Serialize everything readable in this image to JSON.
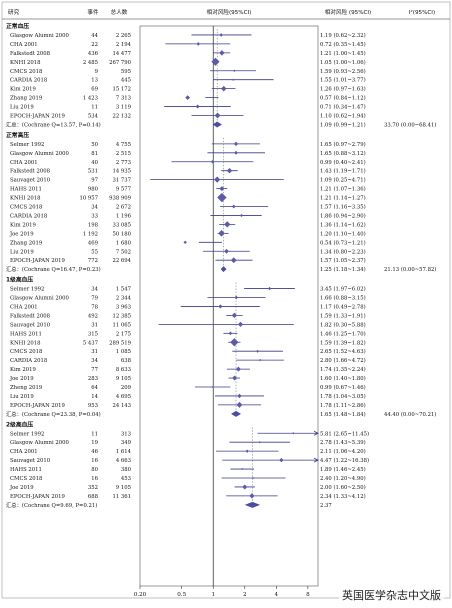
{
  "headers": {
    "study": "研究",
    "events": "事件",
    "total": "总人数",
    "plot": "相对风险(95%CI)",
    "rr": "相对风险 (95%CI)",
    "p": "I²(95%CI)"
  },
  "watermark": "英国医学杂志中文版",
  "chart_data": {
    "type": "forest",
    "x_ticks": [
      "0.20",
      "0.5",
      "1",
      "2",
      "4",
      "8"
    ],
    "x_tick_values": [
      0.2,
      0.5,
      1,
      2,
      4,
      8
    ],
    "x_scale": "log",
    "xlim": [
      0.2,
      10
    ],
    "colors": {
      "marker": "#5b5ba8",
      "line": "#3a3a8c",
      "summary": "#4b4ba0"
    },
    "groups": [
      {
        "label": "正常血压",
        "pooled_rr": 1.09,
        "studies": [
          {
            "name": "Glasgow Alumni 2000",
            "events": "44",
            "total": "2 265",
            "rr": 1.19,
            "lo": 0.62,
            "hi": 2.32,
            "text": "1.19 (0.62~2.32)"
          },
          {
            "name": "CHA 2001",
            "events": "22",
            "total": "2 194",
            "rr": 0.72,
            "lo": 0.35,
            "hi": 1.45,
            "text": "0.72 (0.35~1.45)"
          },
          {
            "name": "Falkstedt 2008",
            "events": "436",
            "total": "14 477",
            "rr": 1.21,
            "lo": 1.0,
            "hi": 1.45,
            "text": "1.21 (1.00~1.45)"
          },
          {
            "name": "KNHI 2018",
            "events": "2 485",
            "total": "267 790",
            "rr": 1.05,
            "lo": 1.0,
            "hi": 1.06,
            "text": "1.05 (1.00~1.06)"
          },
          {
            "name": "CMCS 2018",
            "events": "9",
            "total": "595",
            "rr": 1.59,
            "lo": 0.93,
            "hi": 2.56,
            "text": "1.59 (0.93~2.56)"
          },
          {
            "name": "CARDIA 2018",
            "events": "13",
            "total": "445",
            "rr": 1.55,
            "lo": 1.01,
            "hi": 3.77,
            "text": "1.55 (1.01~3.77)"
          },
          {
            "name": "Kim 2019",
            "events": "69",
            "total": "15 172",
            "rr": 1.26,
            "lo": 0.97,
            "hi": 1.63,
            "text": "1.26 (0.97~1.63)"
          },
          {
            "name": "Zhang 2019",
            "events": "1 423",
            "total": "7 313",
            "rr": 0.57,
            "lo": 0.84,
            "hi": 1.12,
            "text": "0.57 (0.84~1.12)"
          },
          {
            "name": "Liu 2019",
            "events": "11",
            "total": "3 119",
            "rr": 0.71,
            "lo": 0.34,
            "hi": 1.47,
            "text": "0.71 (0.34~1.47)"
          },
          {
            "name": "EPOCH-JAPAN 2019",
            "events": "534",
            "total": "22 132",
            "rr": 1.1,
            "lo": 0.62,
            "hi": 1.94,
            "text": "1.10 (0.62~1.94)"
          }
        ],
        "summary": {
          "label": "汇总：(Cochrane Q=13.57, P=0.14)",
          "text": "1.09 (0.99~1.21)",
          "i2": "33.70 (0.00~68.41)",
          "rr": 1.09,
          "lo": 0.99,
          "hi": 1.21
        }
      },
      {
        "label": "正常高压",
        "pooled_rr": 1.25,
        "studies": [
          {
            "name": "Selmer 1992",
            "events": "50",
            "total": "4 755",
            "rr": 1.65,
            "lo": 0.97,
            "hi": 2.79,
            "text": "1.65 (0.97~2.79)"
          },
          {
            "name": "Glasgow Alumni 2000",
            "events": "81",
            "total": "2 515",
            "rr": 1.65,
            "lo": 0.88,
            "hi": 3.12,
            "text": "1.65 (0.88~3.12)"
          },
          {
            "name": "CHA 2001",
            "events": "40",
            "total": "2 773",
            "rr": 0.99,
            "lo": 0.4,
            "hi": 2.41,
            "text": "0.99 (0.40~2.41)"
          },
          {
            "name": "Falkstedt 2008",
            "events": "531",
            "total": "14 935",
            "rr": 1.43,
            "lo": 1.19,
            "hi": 1.71,
            "text": "1.43 (1.19~1.71)"
          },
          {
            "name": "Sauvaget 2010",
            "events": "97",
            "total": "31 737",
            "rr": 1.09,
            "lo": 0.25,
            "hi": 4.71,
            "text": "1.09 (0.25~4.71)"
          },
          {
            "name": "HAHS 2011",
            "events": "980",
            "total": "9 577",
            "rr": 1.21,
            "lo": 1.07,
            "hi": 1.36,
            "text": "1.21 (1.07~1.36)"
          },
          {
            "name": "KNHI 2018",
            "events": "10 957",
            "total": "938 909",
            "rr": 1.21,
            "lo": 1.14,
            "hi": 1.27,
            "text": "1.21 (1.14~1.27)"
          },
          {
            "name": "CMCS 2018",
            "events": "34",
            "total": "2 672",
            "rr": 1.57,
            "lo": 1.16,
            "hi": 3.35,
            "text": "1.57 (1.16~3.35)"
          },
          {
            "name": "CARDIA 2018",
            "events": "33",
            "total": "1 196",
            "rr": 1.86,
            "lo": 0.94,
            "hi": 2.9,
            "text": "1.86 (0.94~2.90)"
          },
          {
            "name": "Kim 2019",
            "events": "198",
            "total": "33 085",
            "rr": 1.36,
            "lo": 1.14,
            "hi": 1.62,
            "text": "1.36 (1.14~1.62)"
          },
          {
            "name": "Joe 2019",
            "events": "1 192",
            "total": "50 180",
            "rr": 1.2,
            "lo": 1.1,
            "hi": 1.4,
            "text": "1.20 (1.10~1.40)"
          },
          {
            "name": "Zhang 2019",
            "events": "469",
            "total": "1 680",
            "rr": 0.54,
            "lo": 0.73,
            "hi": 1.21,
            "text": "0.54 (0.73~1.21)"
          },
          {
            "name": "Liu 2019",
            "events": "55",
            "total": "7 502",
            "rr": 1.34,
            "lo": 0.8,
            "hi": 2.23,
            "text": "1.34 (0.80~2.23)"
          },
          {
            "name": "EPOCH-JAPAN 2019",
            "events": "772",
            "total": "22 694",
            "rr": 1.57,
            "lo": 1.05,
            "hi": 2.37,
            "text": "1.57 (1.05~2.37)"
          }
        ],
        "summary": {
          "label": "汇总：(Cochrane Q=16.47, P=0.23)",
          "text": "1.25 (1.18~1.34)",
          "i2": "21.13 (0.00~57.82)",
          "rr": 1.25,
          "lo": 1.18,
          "hi": 1.34
        }
      },
      {
        "label": "1级高血压",
        "pooled_rr": 1.65,
        "studies": [
          {
            "name": "Selmer 1992",
            "events": "34",
            "total": "1 547",
            "rr": 3.45,
            "lo": 1.97,
            "hi": 6.02,
            "text": "3.45 (1.97~6.02)"
          },
          {
            "name": "Glasgow Alumni 2000",
            "events": "79",
            "total": "2 344",
            "rr": 1.66,
            "lo": 0.88,
            "hi": 3.15,
            "text": "1.66 (0.88~3.15)"
          },
          {
            "name": "CHA 2001",
            "events": "78",
            "total": "3 963",
            "rr": 1.17,
            "lo": 0.49,
            "hi": 2.78,
            "text": "1.17 (0.49~2.78)"
          },
          {
            "name": "Falkstedt 2008",
            "events": "492",
            "total": "12 385",
            "rr": 1.59,
            "lo": 1.33,
            "hi": 1.91,
            "text": "1.59 (1.33~1.91)"
          },
          {
            "name": "Sauvaget 2010",
            "events": "31",
            "total": "11 065",
            "rr": 1.82,
            "lo": 0.3,
            "hi": 5.88,
            "text": "1.82 (0.30~5.88)"
          },
          {
            "name": "HAHS 2011",
            "events": "315",
            "total": "2 175",
            "rr": 1.46,
            "lo": 1.25,
            "hi": 1.7,
            "text": "1.46 (1.25~1.70)"
          },
          {
            "name": "KNHI 2018",
            "events": "5 437",
            "total": "289 519",
            "rr": 1.59,
            "lo": 1.39,
            "hi": 1.82,
            "text": "1.59 (1.39~1.82)"
          },
          {
            "name": "CMCS 2018",
            "events": "31",
            "total": "1 085",
            "rr": 2.65,
            "lo": 1.52,
            "hi": 4.63,
            "text": "2.65 (1.52~4.63)"
          },
          {
            "name": "CARDIA 2018",
            "events": "34",
            "total": "638",
            "rr": 2.8,
            "lo": 1.66,
            "hi": 4.72,
            "text": "2.80 (1.66~4.72)"
          },
          {
            "name": "Kim 2019",
            "events": "77",
            "total": "8 633",
            "rr": 1.74,
            "lo": 1.35,
            "hi": 2.24,
            "text": "1.74 (1.35~2.24)"
          },
          {
            "name": "Joe 2019",
            "events": "283",
            "total": "9 105",
            "rr": 1.6,
            "lo": 1.4,
            "hi": 1.8,
            "text": "1.60 (1.40~1.80)"
          },
          {
            "name": "Zheng 2019",
            "events": "64",
            "total": "209",
            "rr": 0.99,
            "lo": 0.67,
            "hi": 1.46,
            "text": "0.99 (0.67~1.46)"
          },
          {
            "name": "Liu 2019",
            "events": "14",
            "total": "4 695",
            "rr": 1.78,
            "lo": 1.04,
            "hi": 3.05,
            "text": "1.78 (1.04~3.05)"
          },
          {
            "name": "EPOCH-JAPAN 2019",
            "events": "953",
            "total": "24 143",
            "rr": 1.78,
            "lo": 1.11,
            "hi": 2.86,
            "text": "1.78 (1.11~2.86)"
          }
        ],
        "summary": {
          "label": "汇总：(Cochrane Q=23.38, P=0.04)",
          "text": "1.65 (1.48~1.84)",
          "i2": "44.40 (0.00~70.21)",
          "rr": 1.65,
          "lo": 1.48,
          "hi": 1.84
        }
      },
      {
        "label": "2级高血压",
        "pooled_rr": 2.37,
        "studies": [
          {
            "name": "Selmer 1992",
            "events": "11",
            "total": "313",
            "rr": 5.81,
            "lo": 2.65,
            "hi": 11.45,
            "text": "5.81 (2.65~11.45)"
          },
          {
            "name": "Glasgow Alumni 2000",
            "events": "19",
            "total": "349",
            "rr": 2.78,
            "lo": 1.43,
            "hi": 5.39,
            "text": "2.78 (1.43~5.39)"
          },
          {
            "name": "CHA 2001",
            "events": "46",
            "total": "1 614",
            "rr": 2.11,
            "lo": 1.06,
            "hi": 4.2,
            "text": "2.11 (1.06~4.20)"
          },
          {
            "name": "Sauvaget 2010",
            "events": "16",
            "total": "4 663",
            "rr": 4.47,
            "lo": 1.22,
            "hi": 16.38,
            "text": "4.47 (1.22~16.38)"
          },
          {
            "name": "HAHS 2011",
            "events": "80",
            "total": "380",
            "rr": 1.89,
            "lo": 1.46,
            "hi": 2.45,
            "text": "1.89 (1.46~2.45)"
          },
          {
            "name": "CMCS 2018",
            "events": "16",
            "total": "453",
            "rr": 2.4,
            "lo": 1.2,
            "hi": 4.9,
            "text": "2.40 (1.20~4.90)"
          },
          {
            "name": "Joe 2019",
            "events": "352",
            "total": "9 105",
            "rr": 2.0,
            "lo": 1.6,
            "hi": 2.5,
            "text": "2.00 (1.60~2.50)"
          },
          {
            "name": "EPOCH-JAPAN 2019",
            "events": "688",
            "total": "11 361",
            "rr": 2.34,
            "lo": 1.33,
            "hi": 4.12,
            "text": "2.34 (1.33~4.12)"
          }
        ],
        "summary": {
          "label": "汇总：(Cochrane Q=9.69, P=0.21)",
          "text": "2.37",
          "i2": "",
          "rr": 2.37,
          "lo": 2.0,
          "hi": 2.8
        }
      }
    ]
  }
}
